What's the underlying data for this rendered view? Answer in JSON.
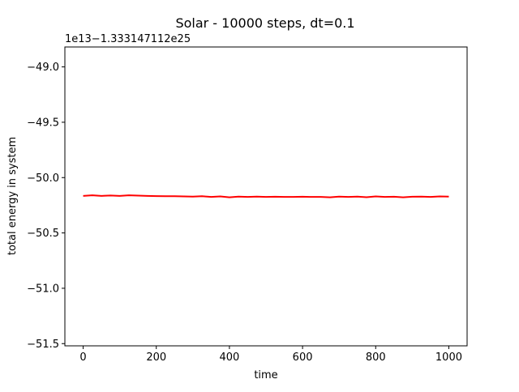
{
  "chart_data": {
    "type": "line",
    "title": "Solar - 10000 steps, dt=0.1",
    "xlabel": "time",
    "ylabel": "total energy in system",
    "axis_offset_label": "1e13−1.333147112e25",
    "xlim": [
      -50,
      1050
    ],
    "ylim": [
      -51.52,
      -48.82
    ],
    "x_ticks": [
      0,
      200,
      400,
      600,
      800,
      1000
    ],
    "x_tick_labels": [
      "0",
      "200",
      "400",
      "600",
      "800",
      "1000"
    ],
    "y_ticks": [
      -49.0,
      -49.5,
      -50.0,
      -50.5,
      -51.0,
      -51.5
    ],
    "y_tick_labels": [
      "−49.0",
      "−49.5",
      "−50.0",
      "−50.5",
      "−51.0",
      "−51.5"
    ],
    "grid": false,
    "series": [
      {
        "color": "#ff0000",
        "x": [
          0,
          25,
          50,
          75,
          100,
          125,
          150,
          175,
          200,
          225,
          250,
          275,
          300,
          325,
          350,
          375,
          400,
          425,
          450,
          475,
          500,
          525,
          550,
          575,
          600,
          625,
          650,
          675,
          700,
          725,
          750,
          775,
          800,
          825,
          850,
          875,
          900,
          925,
          950,
          975,
          1000
        ],
        "y": [
          -50.165,
          -50.16,
          -50.165,
          -50.162,
          -50.165,
          -50.16,
          -50.163,
          -50.165,
          -50.167,
          -50.168,
          -50.168,
          -50.17,
          -50.172,
          -50.168,
          -50.175,
          -50.17,
          -50.178,
          -50.172,
          -50.175,
          -50.172,
          -50.175,
          -50.173,
          -50.175,
          -50.175,
          -50.173,
          -50.175,
          -50.175,
          -50.178,
          -50.172,
          -50.175,
          -50.172,
          -50.177,
          -50.17,
          -50.175,
          -50.173,
          -50.178,
          -50.173,
          -50.172,
          -50.175,
          -50.17,
          -50.172
        ]
      }
    ]
  }
}
